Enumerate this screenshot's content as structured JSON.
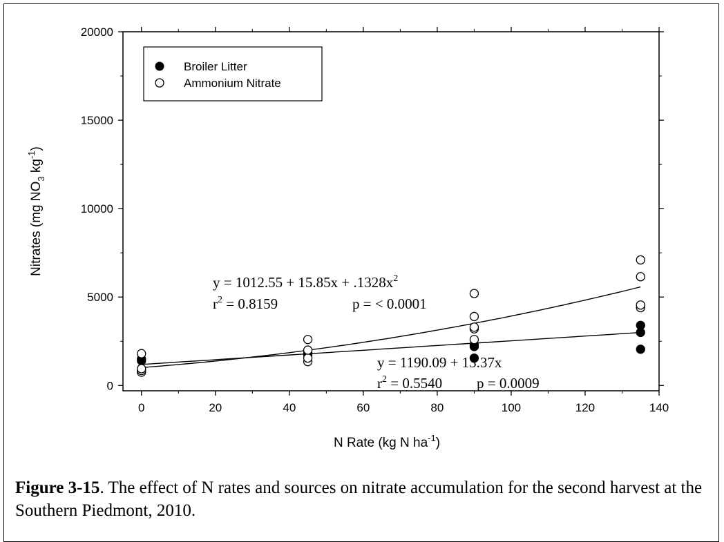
{
  "chart_data": {
    "type": "scatter",
    "xlabel": "N Rate (kg N ha",
    "xlabel_sup": "-1",
    "xlabel_end": ")",
    "ylabel": "Nitrates (mg NO",
    "ylabel_sub": "3",
    "ylabel_mid": " kg",
    "ylabel_sup": "-1",
    "ylabel_end": ")",
    "xlim": [
      -5,
      140
    ],
    "ylim": [
      -300,
      20000
    ],
    "xticks": [
      0,
      20,
      40,
      60,
      80,
      100,
      120,
      140
    ],
    "yticks": [
      0,
      5000,
      10000,
      15000,
      20000
    ],
    "legend_position": "top-left",
    "series": [
      {
        "name": "Broiler Litter",
        "marker": "filled-circle",
        "x": [
          0,
          0,
          45,
          45,
          90,
          90,
          90,
          135,
          135,
          135
        ],
        "y": [
          1400,
          1500,
          1700,
          1850,
          1550,
          2200,
          2300,
          2050,
          3000,
          3400
        ]
      },
      {
        "name": "Ammonium Nitrate",
        "marker": "open-circle",
        "x": [
          0,
          0,
          0,
          0,
          45,
          45,
          45,
          45,
          90,
          90,
          90,
          90,
          90,
          135,
          135,
          135,
          135
        ],
        "y": [
          750,
          850,
          950,
          1800,
          1350,
          1550,
          2000,
          2600,
          2600,
          3200,
          3300,
          3900,
          5200,
          4400,
          4550,
          6150,
          7100
        ]
      }
    ],
    "fits": [
      {
        "series": "Ammonium Nitrate",
        "kind": "quadratic",
        "coefficients": [
          1012.55,
          15.85,
          0.1328
        ],
        "equation": "y = 1012.55 + 15.85x + .1328x",
        "equation_sup": "2",
        "r2_label": "r",
        "r2_sup": "2",
        "r2_value": " = 0.8159",
        "p_text": "p = < 0.0001"
      },
      {
        "series": "Broiler Litter",
        "kind": "linear",
        "coefficients": [
          1190.09,
          13.37
        ],
        "equation": "y = 1190.09 + 13.37x",
        "r2_label": "r",
        "r2_sup": "2",
        "r2_value": " = 0.5540",
        "p_text": "p = 0.0009"
      }
    ]
  },
  "caption": {
    "label": "Figure 3-15",
    "text": ".  The effect of N rates and sources on nitrate accumulation for the second harvest at the Southern Piedmont, 2010."
  }
}
